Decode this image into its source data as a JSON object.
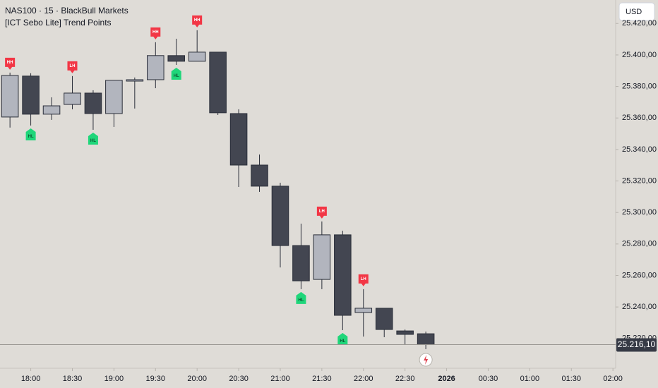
{
  "chart_data": {
    "type": "candlestick",
    "title": "NAS100 · 15 · BlackBull Markets",
    "subtitle": "[ICT Sebo Lite] Trend Points",
    "currency": "USD",
    "open": [
      25360.6,
      25386.6,
      25362.4,
      25368.6,
      25375.8,
      25362.8,
      25383.4,
      25384.3,
      25399.6,
      25396.0,
      25401.8,
      25362.8,
      25330.1,
      25316.7,
      25279.0,
      25257.5,
      25285.8,
      25236.5,
      25239.2,
      25224.8,
      25223.0
    ],
    "high": [
      25388.8,
      25388.4,
      25373.1,
      25386.6,
      25377.6,
      25383.9,
      25385.7,
      25408.1,
      25410.3,
      25415.7,
      25401.8,
      25365.5,
      25336.8,
      25318.9,
      25292.9,
      25294.3,
      25288.4,
      25251.3,
      25239.2,
      25225.7,
      25224.4
    ],
    "low": [
      25353.9,
      25355.2,
      25358.8,
      25365.5,
      25352.5,
      25354.3,
      25366.0,
      25378.9,
      25393.7,
      25396.0,
      25361.9,
      25316.2,
      25313.1,
      25265.1,
      25251.3,
      25251.3,
      25225.3,
      25221.2,
      25220.8,
      25216.3,
      25213.2
    ],
    "close": [
      25387.0,
      25362.4,
      25367.7,
      25375.8,
      25362.8,
      25383.9,
      25384.3,
      25399.6,
      25396.0,
      25401.8,
      25363.3,
      25330.1,
      25316.7,
      25279.0,
      25256.6,
      25285.8,
      25234.7,
      25239.2,
      25225.7,
      25222.6,
      25216.1
    ],
    "up_color": "#b2b5be",
    "down_color": "#434651",
    "xlim": [
      -0.48,
      29.13
    ],
    "xticks": [
      {
        "value": 1,
        "label": "18:00"
      },
      {
        "value": 3,
        "label": "18:30"
      },
      {
        "value": 5,
        "label": "19:00"
      },
      {
        "value": 7,
        "label": "19:30"
      },
      {
        "value": 9,
        "label": "20:00"
      },
      {
        "value": 11,
        "label": "20:30"
      },
      {
        "value": 13,
        "label": "21:00"
      },
      {
        "value": 15,
        "label": "21:30"
      },
      {
        "value": 17,
        "label": "22:00"
      },
      {
        "value": 19,
        "label": "22:30"
      },
      {
        "value": 21,
        "label": "2026"
      },
      {
        "value": 23,
        "label": "00:30"
      },
      {
        "value": 25,
        "label": "01:00"
      },
      {
        "value": 27,
        "label": "01:30"
      },
      {
        "value": 29,
        "label": "02:00"
      }
    ],
    "ylim": [
      25201.1,
      25434.9
    ],
    "yticks": [
      {
        "value": 25220,
        "label": "25.220,00"
      },
      {
        "value": 25240,
        "label": "25.240,00"
      },
      {
        "value": 25260,
        "label": "25.260,00"
      },
      {
        "value": 25280,
        "label": "25.280,00"
      },
      {
        "value": 25300,
        "label": "25.300,00"
      },
      {
        "value": 25320,
        "label": "25.320,00"
      },
      {
        "value": 25340,
        "label": "25.340,00"
      },
      {
        "value": 25360,
        "label": "25.360,00"
      },
      {
        "value": 25380,
        "label": "25.380,00"
      },
      {
        "value": 25400,
        "label": "25.400,00"
      },
      {
        "value": 25420,
        "label": "25.420,00"
      }
    ],
    "last_price": {
      "value": 25216.1,
      "label": "25.216,10"
    },
    "high_color": "#f23645",
    "low_color": "#1fd67a",
    "annotations": [
      {
        "index": 0,
        "label": "HH",
        "kind": "high"
      },
      {
        "index": 1,
        "label": "HL",
        "kind": "low"
      },
      {
        "index": 3,
        "label": "LH",
        "kind": "high"
      },
      {
        "index": 4,
        "label": "HL",
        "kind": "low"
      },
      {
        "index": 7,
        "label": "HH",
        "kind": "high"
      },
      {
        "index": 8,
        "label": "HL",
        "kind": "low"
      },
      {
        "index": 9,
        "label": "HH",
        "kind": "high"
      },
      {
        "index": 14,
        "label": "HL",
        "kind": "low"
      },
      {
        "index": 15,
        "label": "LH",
        "kind": "high"
      },
      {
        "index": 16,
        "label": "HL",
        "kind": "low"
      },
      {
        "index": 17,
        "label": "LH",
        "kind": "high"
      }
    ]
  }
}
